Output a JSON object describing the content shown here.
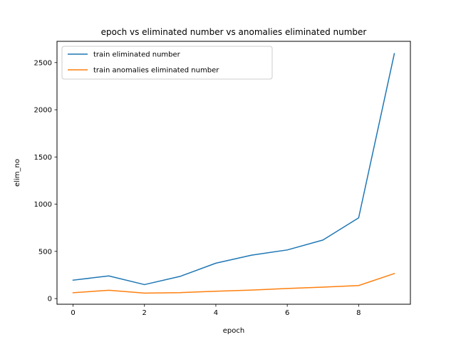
{
  "chart_data": {
    "type": "line",
    "title": "epoch vs eliminated number vs anomalies eliminated number",
    "xlabel": "epoch",
    "ylabel": "elim_no",
    "xlim": [
      -0.45,
      9.45
    ],
    "ylim": [
      -60,
      2725
    ],
    "xticks": [
      0,
      2,
      4,
      6,
      8
    ],
    "yticks": [
      0,
      500,
      1000,
      1500,
      2000,
      2500
    ],
    "x": [
      0,
      1,
      2,
      3,
      4,
      5,
      6,
      7,
      8,
      9
    ],
    "series": [
      {
        "name": "train eliminated number",
        "color": "#1f77b4",
        "values": [
          195,
          240,
          148,
          235,
          375,
          460,
          515,
          620,
          855,
          2595
        ]
      },
      {
        "name": "train anomalies eliminated number",
        "color": "#ff7f0e",
        "values": [
          62,
          88,
          58,
          63,
          78,
          90,
          107,
          121,
          138,
          265
        ]
      }
    ],
    "grid": false,
    "legend": "upper-left"
  }
}
